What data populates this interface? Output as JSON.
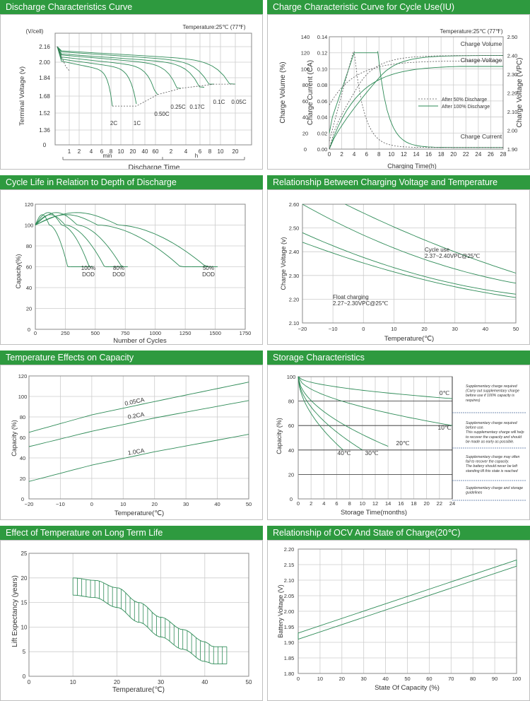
{
  "colors": {
    "header": "#2e9a3f",
    "curve": "#2e8b57",
    "grid": "#cccccc",
    "dashed": "#555555"
  },
  "panels": [
    {
      "title": "Discharge Characteristics Curve",
      "chart_data": {
        "type": "line",
        "title": "Discharge Characteristics Curve",
        "annotation": "Temperature:25℃ (77℉)",
        "xlabel": "Discharge  Time",
        "ylabel": "Terminal  Voltage   (v)",
        "yunit": "(V/cell)",
        "y_ticks": [
          "2.16",
          "2.00",
          "1.84",
          "1.68",
          "1.52",
          "1.36",
          "0"
        ],
        "y_values": [
          2.16,
          2.0,
          1.84,
          1.68,
          1.52,
          1.36,
          0
        ],
        "x_ticks": [
          "1",
          "2",
          "4",
          "6",
          "8",
          "10",
          "20",
          "40",
          "60",
          "2",
          "4",
          "6",
          "8",
          "10",
          "20"
        ],
        "x_units": [
          "min",
          "h"
        ],
        "series": [
          {
            "name": "2C",
            "end_v": 1.6
          },
          {
            "name": "1C",
            "end_v": 1.6
          },
          {
            "name": "0.50C",
            "end_v": 1.7
          },
          {
            "name": "0.25C",
            "end_v": 1.75
          },
          {
            "name": "0.17C",
            "end_v": 1.75
          },
          {
            "name": "0.1C",
            "end_v": 1.8
          },
          {
            "name": "0.05C",
            "end_v": 1.8
          }
        ],
        "grid": true
      }
    },
    {
      "title": "Charge Characteristic Curve for Cycle Use(IU)",
      "chart_data": {
        "type": "line",
        "title": "Charge Characteristic Curve for Cycle Use(IU)",
        "annotation": "Temperature:25℃ (77℉)",
        "xlabel": "Charging Time(h)",
        "x": [
          0,
          2,
          4,
          6,
          8,
          10,
          12,
          14,
          16,
          18,
          20,
          22,
          24,
          26,
          28
        ],
        "ylabel_left1": "Charge  Volume  (%)",
        "ylabel_left2": "Charge  Current  (CA)",
        "ylabel_right": "Charge Voltage  (VPC)",
        "y1_ticks": [
          "0",
          "20",
          "40",
          "60",
          "80",
          "100",
          "120",
          "140"
        ],
        "y2_ticks": [
          "0.00",
          "0.02",
          "0.04",
          "0.06",
          "0.08",
          "0.10",
          "0.12",
          "0.14"
        ],
        "y3_ticks": [
          "1.90",
          "2.00",
          "2.10",
          "2.20",
          "2.30",
          "2.40",
          "2.50"
        ],
        "series": [
          {
            "name": "Charge Volume"
          },
          {
            "name": "Charge Voltage"
          },
          {
            "name": "Charge Current"
          }
        ],
        "legend": [
          "After 50% Discharge",
          "After 100% Discharge"
        ],
        "legend_position": "right",
        "grid": true
      }
    },
    {
      "title": "Cycle Life in Relation to Depth of Discharge",
      "chart_data": {
        "type": "line",
        "title": "Cycle Life in Relation to Depth of Discharge",
        "xlabel": "Number of Cycles",
        "ylabel": "Capacity(%)",
        "x_ticks": [
          "0",
          "250",
          "500",
          "750",
          "1000",
          "1250",
          "1500",
          "1750"
        ],
        "y_ticks": [
          "0",
          "20",
          "40",
          "60",
          "80",
          "100",
          "120"
        ],
        "xlim": [
          0,
          1750
        ],
        "ylim": [
          0,
          120
        ],
        "series": [
          {
            "name": "100% DOD",
            "end_cycles": [
              290,
              480
            ]
          },
          {
            "name": "80% DOD",
            "end_cycles": [
              620,
              770
            ]
          },
          {
            "name": "50% DOD",
            "end_cycles": [
              1300,
              1520
            ]
          }
        ],
        "grid": true
      }
    },
    {
      "title": "Relationship Between Charging Voltage and Temperature",
      "chart_data": {
        "type": "line",
        "title": "Relationship Between Charging Voltage and Temperature",
        "xlabel": "Temperature(℃)",
        "ylabel": "Charge Voltage   (v)",
        "x_ticks": [
          "−20",
          "−10",
          "0",
          "10",
          "20",
          "30",
          "40",
          "50"
        ],
        "y_ticks": [
          "2.10",
          "2.20",
          "2.30",
          "2.40",
          "2.50",
          "2.60"
        ],
        "xlim": [
          -20,
          50
        ],
        "ylim": [
          2.1,
          2.6
        ],
        "annotations": [
          "Cycle use",
          "2.37~2.40VPC@25℃",
          "Float charging",
          "2.27~2.30VPC@25℃"
        ],
        "grid": true
      }
    },
    {
      "title": "Temperature Effects on Capacity",
      "chart_data": {
        "type": "line",
        "title": "Temperature Effects on Capacity",
        "xlabel": "Temperature(℃)",
        "ylabel": "Capacity  (%)",
        "x_ticks": [
          "−20",
          "−10",
          "0",
          "10",
          "20",
          "30",
          "40",
          "50"
        ],
        "y_ticks": [
          "0",
          "20",
          "40",
          "60",
          "80",
          "100",
          "120"
        ],
        "xlim": [
          -20,
          50
        ],
        "ylim": [
          0,
          120
        ],
        "series": [
          {
            "name": "0.05CA",
            "x": [
              -20,
              0,
              20,
              50
            ],
            "y": [
              65,
              82,
              95,
              114
            ]
          },
          {
            "name": "0.2CA",
            "x": [
              -20,
              0,
              20,
              50
            ],
            "y": [
              51,
              66,
              79,
              96
            ]
          },
          {
            "name": "1.0CA",
            "x": [
              -20,
              0,
              20,
              50
            ],
            "y": [
              17,
              33,
              46,
              63
            ]
          }
        ],
        "grid": true
      }
    },
    {
      "title": "Storage Characteristics",
      "chart_data": {
        "type": "line",
        "title": "Storage Characteristics",
        "xlabel": "Storage  Time(months)",
        "ylabel": "Capacity   (%)",
        "x_ticks": [
          "0",
          "2",
          "4",
          "6",
          "8",
          "10",
          "12",
          "14",
          "16",
          "18",
          "20",
          "22",
          "24"
        ],
        "y_ticks": [
          "0",
          "20",
          "40",
          "60",
          "80",
          "100"
        ],
        "xlim": [
          0,
          24
        ],
        "ylim": [
          0,
          100
        ],
        "series": [
          {
            "name": "0℃",
            "end_months": 24,
            "end_capacity": 82
          },
          {
            "name": "10℃",
            "end_months": 24,
            "end_capacity": 60
          },
          {
            "name": "20℃",
            "end_months": 14,
            "end_capacity": 43
          },
          {
            "name": "30℃",
            "end_months": 10,
            "end_capacity": 40
          },
          {
            "name": "40℃",
            "end_months": 7,
            "end_capacity": 40
          }
        ],
        "notes": [
          [
            "Supplementary charge required",
            "(Carry out supplementary charge",
            "before use if 100% capacity is",
            "requires)"
          ],
          [
            "Supplementary charge required",
            "before use.",
            "This supplementary charge will help",
            "to recover the capacity and should",
            "be made  as early as possible."
          ],
          [
            "Supplementary charge may often",
            "fail to recover the capacity.",
            "The battery should never be left",
            "standing till this state is reached"
          ],
          [
            "Supplementary charge and storage",
            "guidelines"
          ]
        ],
        "grid": true
      }
    },
    {
      "title": "Effect of Temperature on Long Term Life",
      "chart_data": {
        "type": "area",
        "title": "Effect of Temperature on Long Term Life",
        "xlabel": "Temperature(℃)",
        "ylabel": "Lift Expectancy   (years)",
        "x_ticks": [
          "0",
          "10",
          "20",
          "30",
          "40",
          "50"
        ],
        "y_ticks": [
          "0",
          "5",
          "10",
          "15",
          "20",
          "25"
        ],
        "xlim": [
          0,
          50
        ],
        "ylim": [
          0,
          25
        ],
        "band_upper": {
          "x": [
            10,
            15,
            20,
            25,
            30,
            35,
            40,
            42,
            45
          ],
          "y": [
            20,
            19.5,
            18,
            15,
            12,
            9.5,
            7,
            6,
            6
          ]
        },
        "band_lower": {
          "x": [
            10,
            15,
            20,
            25,
            30,
            35,
            40,
            42,
            45
          ],
          "y": [
            16.5,
            16,
            14,
            11,
            8,
            5.5,
            3,
            2.5,
            2.5
          ]
        },
        "grid": true
      }
    },
    {
      "title": "Relationship of OCV And State of Charge(20℃)",
      "chart_data": {
        "type": "line",
        "title": "Relationship of OCV And State of Charge(20℃)",
        "xlabel": "State Of Capacity (%)",
        "ylabel": "Battery Voltage (V)",
        "x_ticks": [
          "0",
          "10",
          "20",
          "30",
          "40",
          "50",
          "60",
          "70",
          "80",
          "90",
          "100"
        ],
        "y_ticks": [
          "1.80",
          "1.85",
          "1.90",
          "1.95",
          "2.00",
          "2.05",
          "2.10",
          "2.15",
          "2.20"
        ],
        "xlim": [
          0,
          100
        ],
        "ylim": [
          1.8,
          2.2
        ],
        "band_upper": {
          "x": [
            0,
            100
          ],
          "y": [
            1.93,
            2.165
          ]
        },
        "band_lower": {
          "x": [
            0,
            100
          ],
          "y": [
            1.91,
            2.145
          ]
        },
        "grid": true
      }
    }
  ]
}
